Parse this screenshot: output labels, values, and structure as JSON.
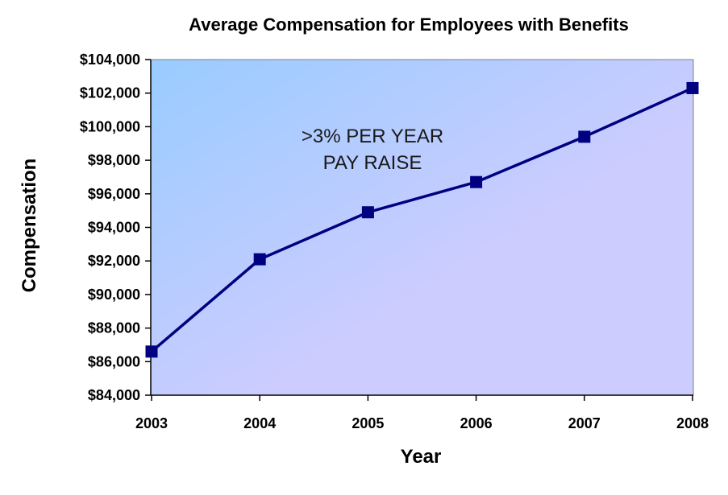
{
  "chart_data": {
    "type": "line",
    "title": "Average Compensation for Employees with Benefits",
    "xlabel": "Year",
    "ylabel": "Compensation",
    "x": [
      "2003",
      "2004",
      "2005",
      "2006",
      "2007",
      "2008"
    ],
    "series": [
      {
        "values": [
          86600,
          92100,
          94900,
          96700,
          99400,
          102300
        ]
      }
    ],
    "ylim": [
      84000,
      104000
    ],
    "yticks": [
      84000,
      86000,
      88000,
      90000,
      92000,
      94000,
      96000,
      98000,
      100000,
      102000,
      104000
    ],
    "ytick_labels": [
      "$84,000",
      "$86,000",
      "$88,000",
      "$90,000",
      "$92,000",
      "$94,000",
      "$96,000",
      "$98,000",
      "$100,000",
      "$102,000",
      "$104,000"
    ],
    "annotation": [
      ">3% PER YEAR",
      "PAY RAISE"
    ],
    "grid": false,
    "legend": "none",
    "line_color": "#000080",
    "marker": "square",
    "background_gradient": [
      "#99ccff",
      "#ccccff"
    ]
  }
}
